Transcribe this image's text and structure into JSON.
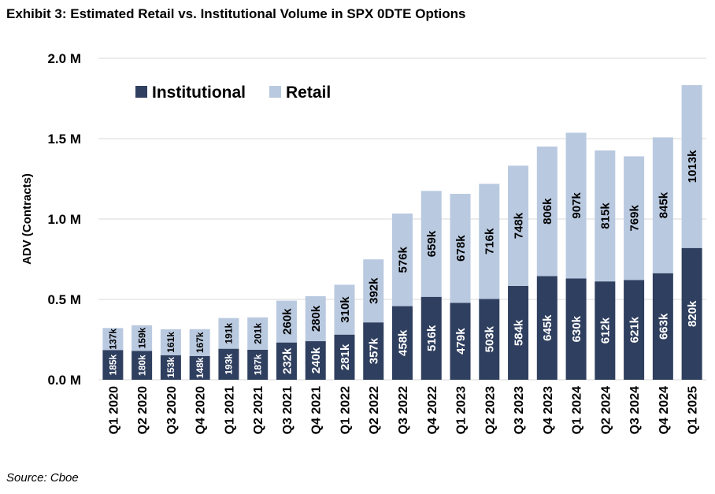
{
  "title": "Exhibit 3: Estimated Retail vs. Institutional Volume in SPX 0DTE Options",
  "source": "Source: Cboe",
  "chart_data": {
    "type": "bar",
    "stacked": true,
    "title": "Exhibit 3: Estimated Retail vs. Institutional Volume in SPX 0DTE Options",
    "xlabel": "",
    "ylabel": "ADV (Contracts)",
    "ylim": [
      0,
      2000
    ],
    "yticks": [
      0,
      500,
      1000,
      1500,
      2000
    ],
    "ytick_labels": [
      "0.0 M",
      "0.5 M",
      "1.0 M",
      "1.5 M",
      "2.0 M"
    ],
    "grid": true,
    "legend": "top-left",
    "categories": [
      "Q1 2020",
      "Q2 2020",
      "Q3 2020",
      "Q4 2020",
      "Q1 2021",
      "Q2 2021",
      "Q3 2021",
      "Q4 2021",
      "Q1 2022",
      "Q2 2022",
      "Q3 2022",
      "Q4 2022",
      "Q1 2023",
      "Q2 2023",
      "Q3 2023",
      "Q4 2023",
      "Q1 2024",
      "Q2 2024",
      "Q3 2024",
      "Q4 2024",
      "Q1 2025"
    ],
    "series": [
      {
        "name": "Institutional",
        "color": "#2f3f5f",
        "values": [
          185,
          180,
          153,
          148,
          193,
          187,
          232,
          240,
          281,
          357,
          458,
          516,
          479,
          503,
          584,
          645,
          630,
          612,
          621,
          663,
          820
        ],
        "labels": [
          "185k",
          "180k",
          "153k",
          "148k",
          "193k",
          "187k",
          "232k",
          "240k",
          "281k",
          "357k",
          "458k",
          "516k",
          "479k",
          "503k",
          "584k",
          "645k",
          "630k",
          "612k",
          "621k",
          "663k",
          "820k"
        ]
      },
      {
        "name": "Retail",
        "color": "#b9c9e0",
        "values": [
          137,
          159,
          161,
          167,
          191,
          201,
          260,
          280,
          310,
          392,
          576,
          659,
          678,
          716,
          748,
          806,
          907,
          815,
          769,
          845,
          1013
        ],
        "labels": [
          "137k",
          "159k",
          "161k",
          "167k",
          "191k",
          "201k",
          "260k",
          "280k",
          "310k",
          "392k",
          "576k",
          "659k",
          "678k",
          "716k",
          "748k",
          "806k",
          "907k",
          "815k",
          "769k",
          "845k",
          "1013k"
        ]
      }
    ]
  }
}
